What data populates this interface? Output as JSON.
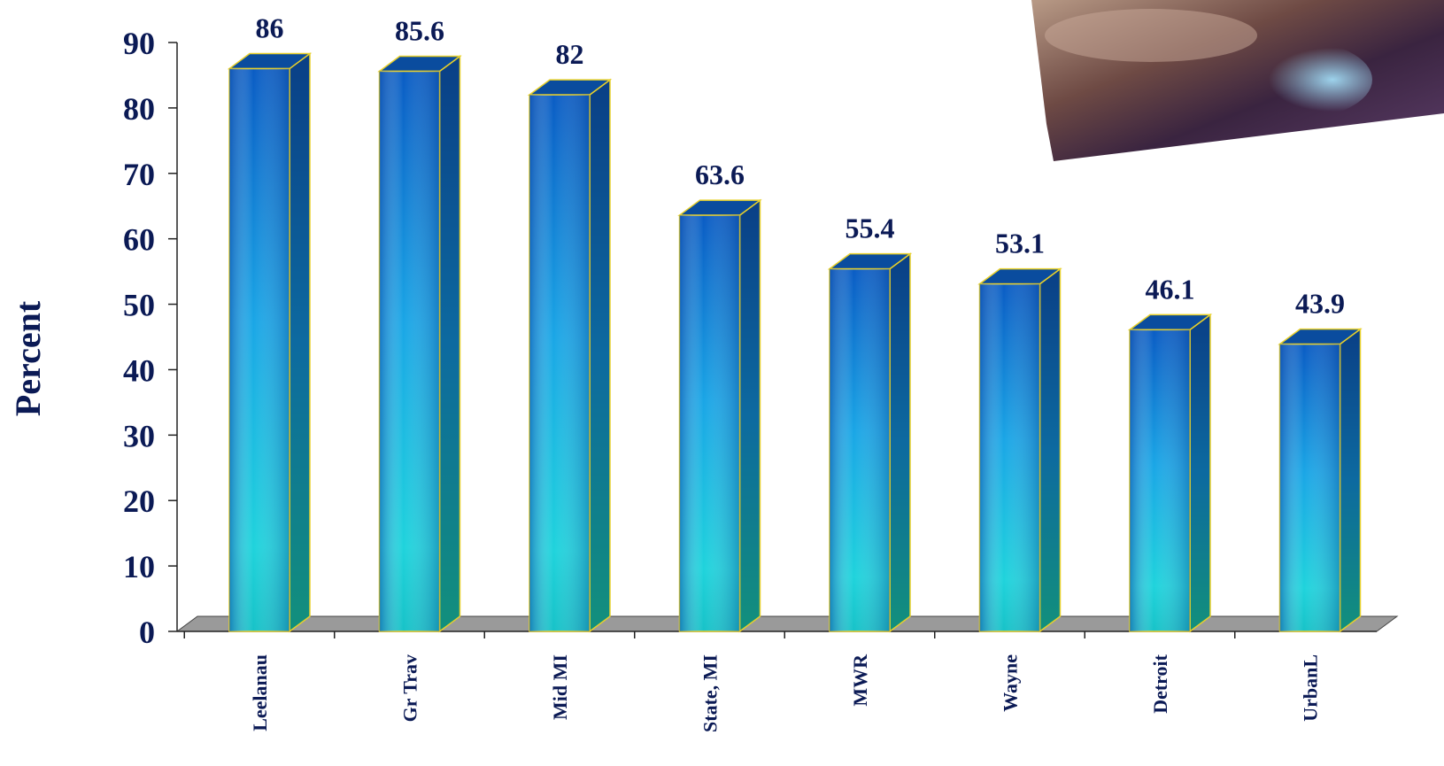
{
  "chart_data": {
    "type": "bar",
    "title": "",
    "xlabel": "",
    "ylabel": "Percent",
    "ylim": [
      0,
      90
    ],
    "yticks": [
      0,
      10,
      20,
      30,
      40,
      50,
      60,
      70,
      80,
      90
    ],
    "categories": [
      "Leelanau",
      "Gr Trav",
      "Mid MI",
      "State, MI",
      "MWR",
      "Wayne",
      "Detroit",
      "UrbanL"
    ],
    "values": [
      86,
      85.6,
      82,
      63.6,
      55.4,
      53.1,
      46.1,
      43.9
    ],
    "value_labels": [
      "86",
      "85.6",
      "82",
      "63.6",
      "55.4",
      "53.1",
      "46.1",
      "43.9"
    ],
    "grid": false,
    "style": "3d-bar",
    "colors": {
      "bar_top": "#0a4fa8",
      "bar_mid": "#1fc8e0",
      "bar_bottom": "#16b0a0",
      "bar_side_top": "#0a3a7a",
      "bar_side_bottom": "#12907c",
      "bar_outline": "#e8d02a",
      "floor": "#999999",
      "text": "#0b1a55"
    }
  },
  "photo": {
    "description_icon": "photo-icon"
  }
}
